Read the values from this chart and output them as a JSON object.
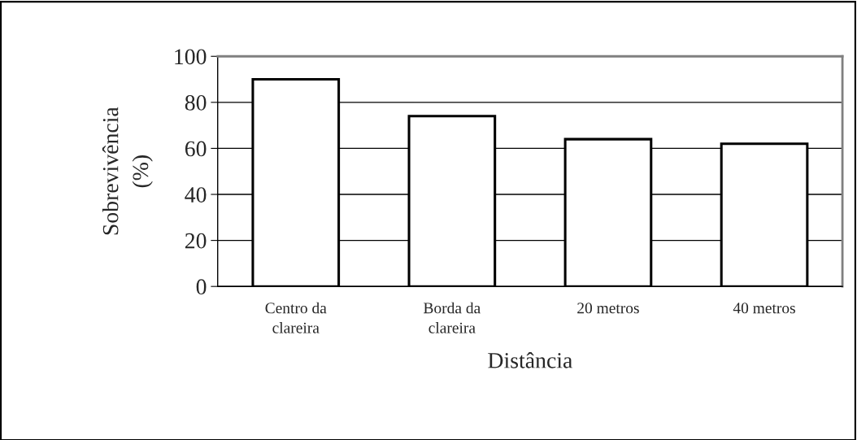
{
  "chart_data": {
    "type": "bar",
    "xlabel": "Distância",
    "ylabel": "Sobrevivência\n(%)",
    "categories": [
      "Centro da\nclareira",
      "Borda da\nclareira",
      "20 metros",
      "40 metros"
    ],
    "values": [
      90,
      74,
      64,
      62
    ],
    "color": "#ffffff",
    "ylim": [
      0,
      100
    ],
    "yticks": [
      0,
      20,
      40,
      60,
      80,
      100
    ],
    "grid": "y",
    "legend": false
  }
}
